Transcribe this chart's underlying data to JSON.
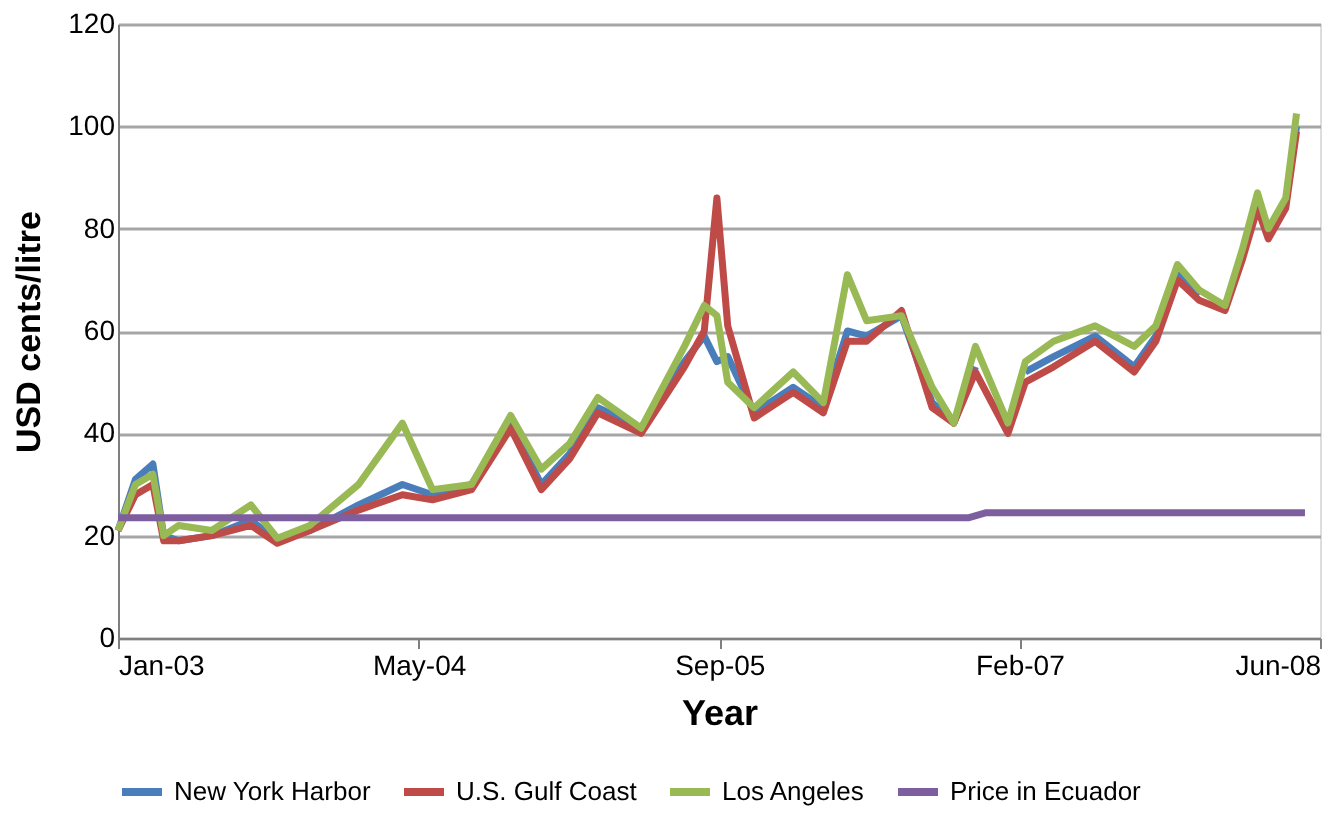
{
  "chart_data": {
    "type": "line",
    "xlabel": "Year",
    "ylabel": "USD cents/litre",
    "x": [
      "2003-01-01",
      "2003-01-30",
      "2003-02-28",
      "2003-03-18",
      "2003-04-12",
      "2003-06-06",
      "2003-08-10",
      "2003-09-23",
      "2003-11-16",
      "2004-02-05",
      "2004-04-18",
      "2004-06-07",
      "2004-08-11",
      "2004-10-15",
      "2004-12-05",
      "2005-01-21",
      "2005-03-09",
      "2005-05-20",
      "2005-07-31",
      "2005-09-02",
      "2005-09-23",
      "2005-10-11",
      "2005-11-24",
      "2006-01-28",
      "2006-03-19",
      "2006-04-28",
      "2006-05-30",
      "2006-07-27",
      "2006-09-16",
      "2006-10-22",
      "2006-11-27",
      "2007-01-20",
      "2007-02-18",
      "2007-04-06",
      "2007-06-14",
      "2007-08-18",
      "2007-09-23",
      "2007-10-29",
      "2007-12-04",
      "2008-01-16",
      "2008-02-14",
      "2008-03-10",
      "2008-03-28",
      "2008-04-26",
      "2008-05-14"
    ],
    "series": [
      {
        "name": "New York Harbor",
        "color": "#4a7ebb",
        "values": [
          21,
          31,
          34,
          20,
          19,
          20,
          23,
          19,
          21,
          26,
          30,
          28,
          30,
          42,
          30,
          36,
          45,
          41,
          54,
          59,
          54,
          55,
          44,
          49,
          45,
          60,
          59,
          63,
          46,
          42,
          53,
          null,
          52,
          55,
          59,
          53,
          59,
          71,
          67,
          null,
          null,
          null,
          null,
          85,
          100
        ]
      },
      {
        "name": "U.S. Gulf Coast",
        "color": "#be4b48",
        "values": [
          21,
          28,
          30,
          19,
          19,
          20,
          22,
          18.5,
          21,
          25,
          28,
          27,
          29,
          41,
          29,
          35,
          44,
          40,
          53,
          60,
          86,
          61,
          43,
          48,
          44,
          58,
          58,
          64,
          45,
          42,
          52,
          40,
          50,
          53,
          58,
          52,
          58,
          70,
          66,
          64,
          74,
          84,
          78,
          84,
          99
        ]
      },
      {
        "name": "Los Angeles",
        "color": "#98b954",
        "values": [
          21,
          30,
          32,
          20,
          22,
          21,
          26,
          19.5,
          22,
          30,
          42,
          29,
          30,
          43.5,
          33,
          38,
          47,
          41,
          57,
          65,
          63,
          50,
          45,
          52,
          46,
          71,
          62,
          63,
          49,
          42,
          57,
          42,
          54,
          58,
          61,
          57,
          61,
          73,
          68,
          65,
          76,
          87,
          80,
          86,
          102.5
        ]
      },
      {
        "name": "Price in Ecuador",
        "color": "#7d5fa0",
        "x": [
          "2003-01-01",
          "2006-11-15",
          "2006-12-15",
          "2008-05-28"
        ],
        "values": [
          23.5,
          23.5,
          24.5,
          24.5
        ]
      }
    ],
    "xlim": [
      "2003-01-01",
      "2008-06-22"
    ],
    "xticks": [
      {
        "value": "2003-01-01",
        "label": "Jan-03"
      },
      {
        "value": "2004-05-15",
        "label": "May-04"
      },
      {
        "value": "2005-09-27",
        "label": "Sep-05"
      },
      {
        "value": "2007-02-08",
        "label": "Feb-07"
      },
      {
        "value": "2008-06-22",
        "label": "Jun-08"
      }
    ],
    "ylim": [
      0,
      120
    ],
    "yticks": [
      0,
      20,
      40,
      60,
      80,
      100,
      120
    ],
    "grid": "y",
    "legend": "bottom",
    "marker": "none",
    "line_style": "solid"
  }
}
